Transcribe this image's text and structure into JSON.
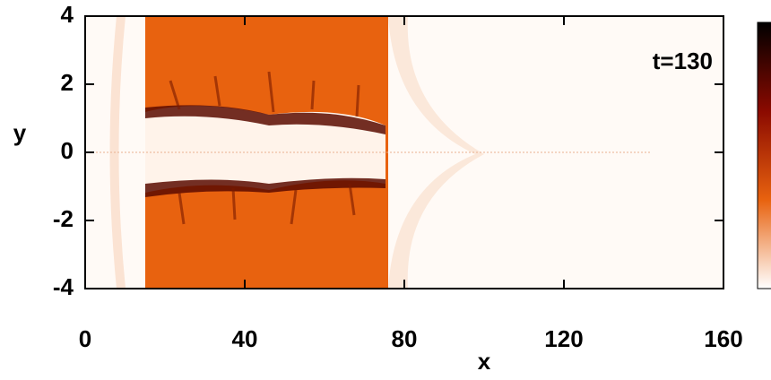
{
  "chart_data": {
    "type": "heatmap",
    "xlabel": "x",
    "ylabel": "y",
    "annotation": "t=130",
    "xlim": [
      0,
      160
    ],
    "ylim": [
      -4,
      4
    ],
    "xticks": [
      0,
      40,
      80,
      120,
      160
    ],
    "yticks": [
      4,
      2,
      0,
      -2,
      -4
    ],
    "colormap": [
      "#000000",
      "#8b0a00",
      "#e8620f",
      "#ffffff"
    ]
  }
}
